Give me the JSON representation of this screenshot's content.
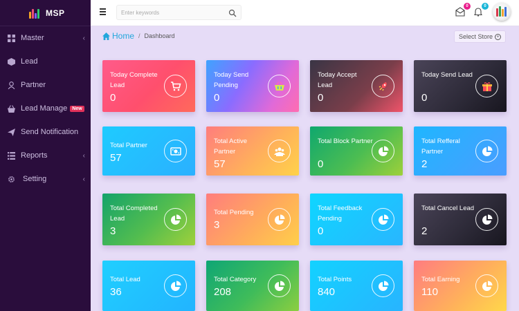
{
  "brand": {
    "name": "MSP"
  },
  "sidebar": {
    "items": [
      {
        "label": "Master",
        "icon": "grid-icon",
        "chevron": "‹"
      },
      {
        "label": "Lead",
        "icon": "cube-icon",
        "chevron": ""
      },
      {
        "label": "Partner",
        "icon": "user-icon",
        "chevron": ""
      },
      {
        "label": "Lead Manage",
        "icon": "basket-icon",
        "chevron": "",
        "badge": "New"
      },
      {
        "label": "Send Notification",
        "icon": "send-icon",
        "chevron": ""
      },
      {
        "label": "Reports",
        "icon": "list-icon",
        "chevron": "‹"
      },
      {
        "label": "Setting",
        "icon": "gear-icon",
        "chevron": "‹"
      }
    ]
  },
  "topbar": {
    "search_placeholder": "Enter keywords",
    "mail_count": "0",
    "bell_count": "0"
  },
  "breadcrumb": {
    "home": "Home",
    "separator": "/",
    "current": "Dashboard"
  },
  "select_store": {
    "label": "Select Store",
    "plus": "+"
  },
  "cards": [
    {
      "title": "Today Complete Lead",
      "value": "0",
      "icon": "cart-icon"
    },
    {
      "title": "Today Send Pending",
      "value": "0",
      "icon": "basket-icon"
    },
    {
      "title": "Today Accept Lead",
      "value": "0",
      "icon": "rocket-icon"
    },
    {
      "title": "Today Send Lead",
      "value": "0",
      "icon": "gift-icon"
    },
    {
      "title": "Total Partner",
      "value": "57",
      "icon": "money-icon"
    },
    {
      "title": "Total Active Partner",
      "value": "57",
      "icon": "group-icon"
    },
    {
      "title": "Total Block Partner",
      "value": "0",
      "icon": "pie-icon"
    },
    {
      "title": "Total Refferal Partner",
      "value": "2",
      "icon": "pie-icon"
    },
    {
      "title": "Total Completed Lead",
      "value": "3",
      "icon": "pie-icon"
    },
    {
      "title": "Total Pending",
      "value": "3",
      "icon": "pie-icon"
    },
    {
      "title": "Total Feedback Pending",
      "value": "0",
      "icon": "pie-icon"
    },
    {
      "title": "Total Cancel Lead",
      "value": "2",
      "icon": "pie-icon"
    },
    {
      "title": "Total Lead",
      "value": "36",
      "icon": "pie-icon"
    },
    {
      "title": "Total Category",
      "value": "208",
      "icon": "pie-icon"
    },
    {
      "title": "Total Points",
      "value": "840",
      "icon": "pie-icon"
    },
    {
      "title": "Total Earning",
      "value": "110",
      "icon": "pie-icon"
    }
  ],
  "colors": {
    "sidebar_bg": "#2a0d3c",
    "content_bg": "#e6dcf7",
    "accent": "#22a7dc",
    "badge_mail": "#e91e8c",
    "badge_bell": "#1ab6d8"
  }
}
